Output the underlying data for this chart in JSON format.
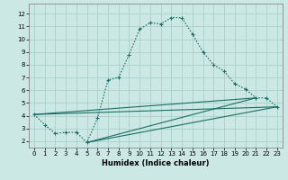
{
  "xlabel": "Humidex (Indice chaleur)",
  "bg_color": "#cce8e4",
  "grid_color": "#aacfcc",
  "line_color": "#1a6e65",
  "xlim": [
    -0.5,
    23.5
  ],
  "ylim": [
    1.5,
    12.8
  ],
  "xticks": [
    0,
    1,
    2,
    3,
    4,
    5,
    6,
    7,
    8,
    9,
    10,
    11,
    12,
    13,
    14,
    15,
    16,
    17,
    18,
    19,
    20,
    21,
    22,
    23
  ],
  "yticks": [
    2,
    3,
    4,
    5,
    6,
    7,
    8,
    9,
    10,
    11,
    12
  ],
  "series": [
    [
      0,
      4.1
    ],
    [
      1,
      3.3
    ],
    [
      2,
      2.6
    ],
    [
      3,
      2.7
    ],
    [
      4,
      2.7
    ],
    [
      5,
      1.9
    ],
    [
      6,
      3.8
    ],
    [
      7,
      6.8
    ],
    [
      8,
      7.0
    ],
    [
      9,
      8.8
    ],
    [
      10,
      10.8
    ],
    [
      11,
      11.3
    ],
    [
      12,
      11.2
    ],
    [
      13,
      11.7
    ],
    [
      14,
      11.7
    ],
    [
      15,
      10.4
    ],
    [
      16,
      9.0
    ],
    [
      17,
      8.0
    ],
    [
      18,
      7.5
    ],
    [
      19,
      6.5
    ],
    [
      20,
      6.1
    ],
    [
      21,
      5.4
    ],
    [
      22,
      5.4
    ],
    [
      23,
      4.7
    ]
  ],
  "straight_lines": [
    [
      [
        0,
        4.1
      ],
      [
        21,
        5.4
      ]
    ],
    [
      [
        0,
        4.1
      ],
      [
        23,
        4.7
      ]
    ],
    [
      [
        5,
        1.9
      ],
      [
        21,
        5.4
      ]
    ],
    [
      [
        5,
        1.9
      ],
      [
        23,
        4.7
      ]
    ]
  ]
}
